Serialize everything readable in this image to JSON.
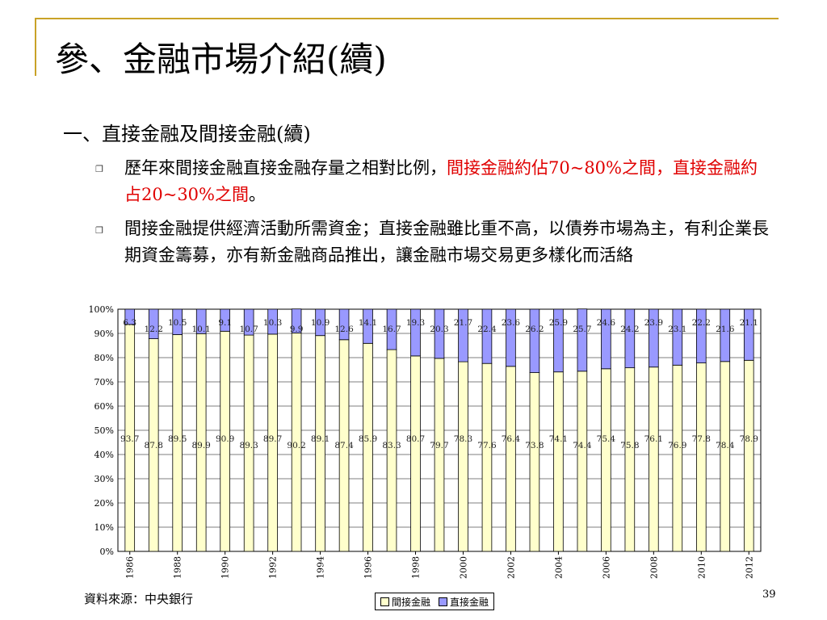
{
  "slide": {
    "title": "參、金融市場介紹(續)",
    "subtitle": "一、直接金融及間接金融(續)",
    "bullet1_text": "歷年來間接金融直接金融存量之相對比例，",
    "bullet1_red": "間接金融約佔70~80%之間，直接金融約占20~30%之間",
    "bullet1_end": "。",
    "bullet2_text": "間接金融提供經濟活動所需資金；直接金融雖比重不高，以債券市場為主，有利企業長期資金籌募，亦有新金融商品推出，讓金融市場交易更多樣化而活絡",
    "source": "資料來源：中央銀行",
    "page_number": "39"
  },
  "colors": {
    "gold": "#c9a227",
    "indirect": "#ffffcc",
    "direct": "#9999ff",
    "red": "#e00000"
  },
  "chart_data": {
    "type": "bar",
    "stacked": true,
    "categories": [
      "1986",
      "1987",
      "1988",
      "1989",
      "1990",
      "1991",
      "1992",
      "1993",
      "1994",
      "1995",
      "1996",
      "1997",
      "1998",
      "1999",
      "2000",
      "2001",
      "2002",
      "2003",
      "2004",
      "2005",
      "2006",
      "2007",
      "2008",
      "2009",
      "2010",
      "2011",
      "2012"
    ],
    "x_tick_labels": [
      "1986",
      "1988",
      "1990",
      "1992",
      "1994",
      "1996",
      "1998",
      "2000",
      "2002",
      "2004",
      "2006",
      "2008",
      "2010",
      "2012"
    ],
    "series": [
      {
        "name": "間接金融",
        "color": "#ffffcc",
        "values": [
          93.7,
          87.8,
          89.5,
          89.9,
          90.9,
          89.3,
          89.7,
          90.2,
          89.1,
          87.4,
          85.9,
          83.3,
          80.7,
          79.7,
          78.3,
          77.6,
          76.4,
          73.8,
          74.1,
          74.4,
          75.4,
          75.8,
          76.1,
          76.9,
          77.8,
          78.4,
          78.9
        ]
      },
      {
        "name": "直接金融",
        "color": "#9999ff",
        "values": [
          6.3,
          12.2,
          10.5,
          10.1,
          9.1,
          10.7,
          10.3,
          9.9,
          10.9,
          12.6,
          14.1,
          16.7,
          19.3,
          20.3,
          21.7,
          22.4,
          23.6,
          26.2,
          25.9,
          25.7,
          24.6,
          24.2,
          23.9,
          23.1,
          22.2,
          21.6,
          21.1
        ]
      }
    ],
    "y_tick_labels": [
      "0%",
      "10%",
      "20%",
      "30%",
      "40%",
      "50%",
      "60%",
      "70%",
      "80%",
      "90%",
      "100%"
    ],
    "ylim": [
      0,
      100
    ],
    "grid": true,
    "legend": "bottom"
  }
}
